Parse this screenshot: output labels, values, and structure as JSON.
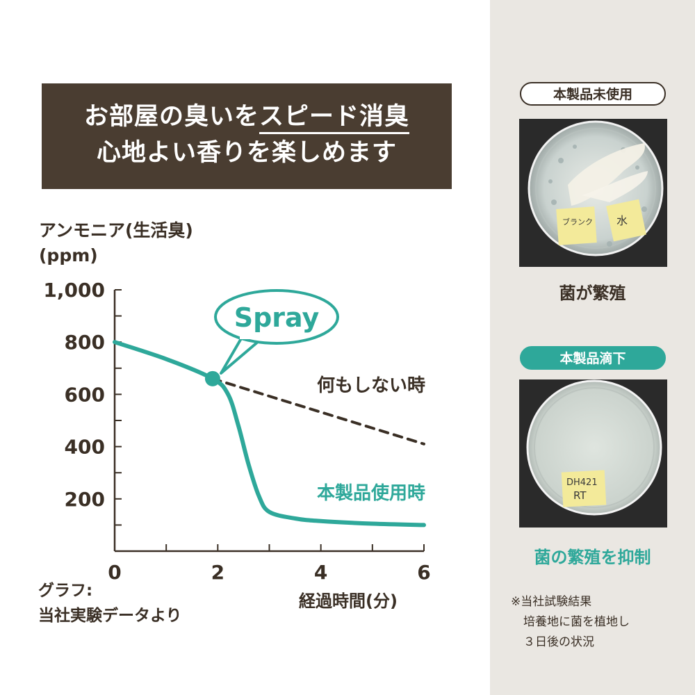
{
  "banner": {
    "line1_plain": "お部屋の臭いを",
    "line1_underlined": "スピード消臭",
    "line2": "心地よい香りを楽しめます"
  },
  "chart_data": {
    "type": "line",
    "ylabel_line1": "アンモニア(生活臭)",
    "ylabel_line2": "(ppm)",
    "xlabel": "経過時間(分)",
    "xlim": [
      0,
      6
    ],
    "ylim": [
      0,
      1000
    ],
    "x_ticks": [
      0,
      2,
      4,
      6
    ],
    "x_tick_labels": [
      "0",
      "2",
      "4",
      "6"
    ],
    "y_ticks": [
      200,
      400,
      600,
      800,
      1000
    ],
    "y_tick_labels": [
      "200",
      "400",
      "600",
      "800",
      "1,000"
    ],
    "series": [
      {
        "name": "何もしない時",
        "style": "dashed",
        "color": "#3a2f25",
        "x": [
          1.9,
          6
        ],
        "y": [
          660,
          410
        ]
      },
      {
        "name": "本製品使用時",
        "style": "solid",
        "color": "#2ea89a",
        "x": [
          0,
          1,
          1.9,
          2.2,
          2.4,
          2.6,
          2.8,
          3.0,
          3.5,
          4,
          5,
          6
        ],
        "y": [
          800,
          735,
          660,
          600,
          480,
          330,
          210,
          150,
          125,
          115,
          105,
          100
        ]
      }
    ],
    "annotation": {
      "label": "Spray",
      "x": 1.9,
      "y": 660
    }
  },
  "graph_note": {
    "line1": "グラフ:",
    "line2": "当社実験データより"
  },
  "panel": {
    "untreated_label": "本製品未使用",
    "untreated_caption": "菌が繁殖",
    "treated_label": "本製品滴下",
    "treated_caption": "菌の繁殖を抑制",
    "untreated_sticker_1": "ブランク",
    "untreated_sticker_2": "水",
    "treated_sticker_1": "DH421",
    "treated_sticker_2": "RT",
    "note_line1": "※当社試験結果",
    "note_line2": "培養地に菌を植地し",
    "note_line3": "３日後の状況"
  },
  "colors": {
    "accent": "#2ea89a",
    "text": "#3a2f25",
    "banner": "#4a3d31",
    "panel": "#eae7e2"
  }
}
